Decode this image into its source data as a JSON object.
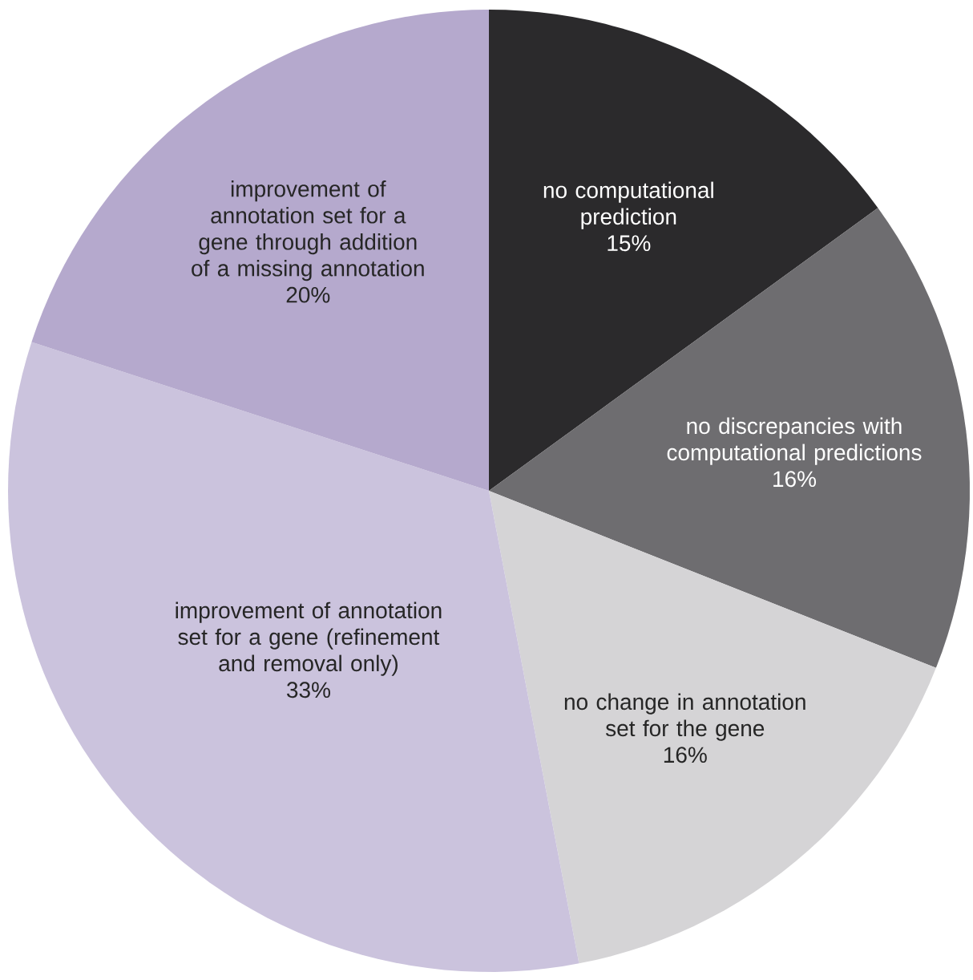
{
  "chart_data": {
    "type": "pie",
    "categories": [
      "no computational prediction",
      "no discrepancies with computational predictions",
      "no change in annotation set for the gene",
      "improvement of annotation set for a gene (refinement and removal only)",
      "improvement of annotation set for a gene through addition of a missing annotation"
    ],
    "values": [
      15,
      16,
      16,
      33,
      20
    ],
    "value_labels": [
      "15%",
      "16%",
      "16%",
      "33%",
      "20%"
    ],
    "colors": [
      "#2b2a2c",
      "#6e6d70",
      "#d5d4d6",
      "#cbc3dd",
      "#b5a9cd"
    ]
  }
}
